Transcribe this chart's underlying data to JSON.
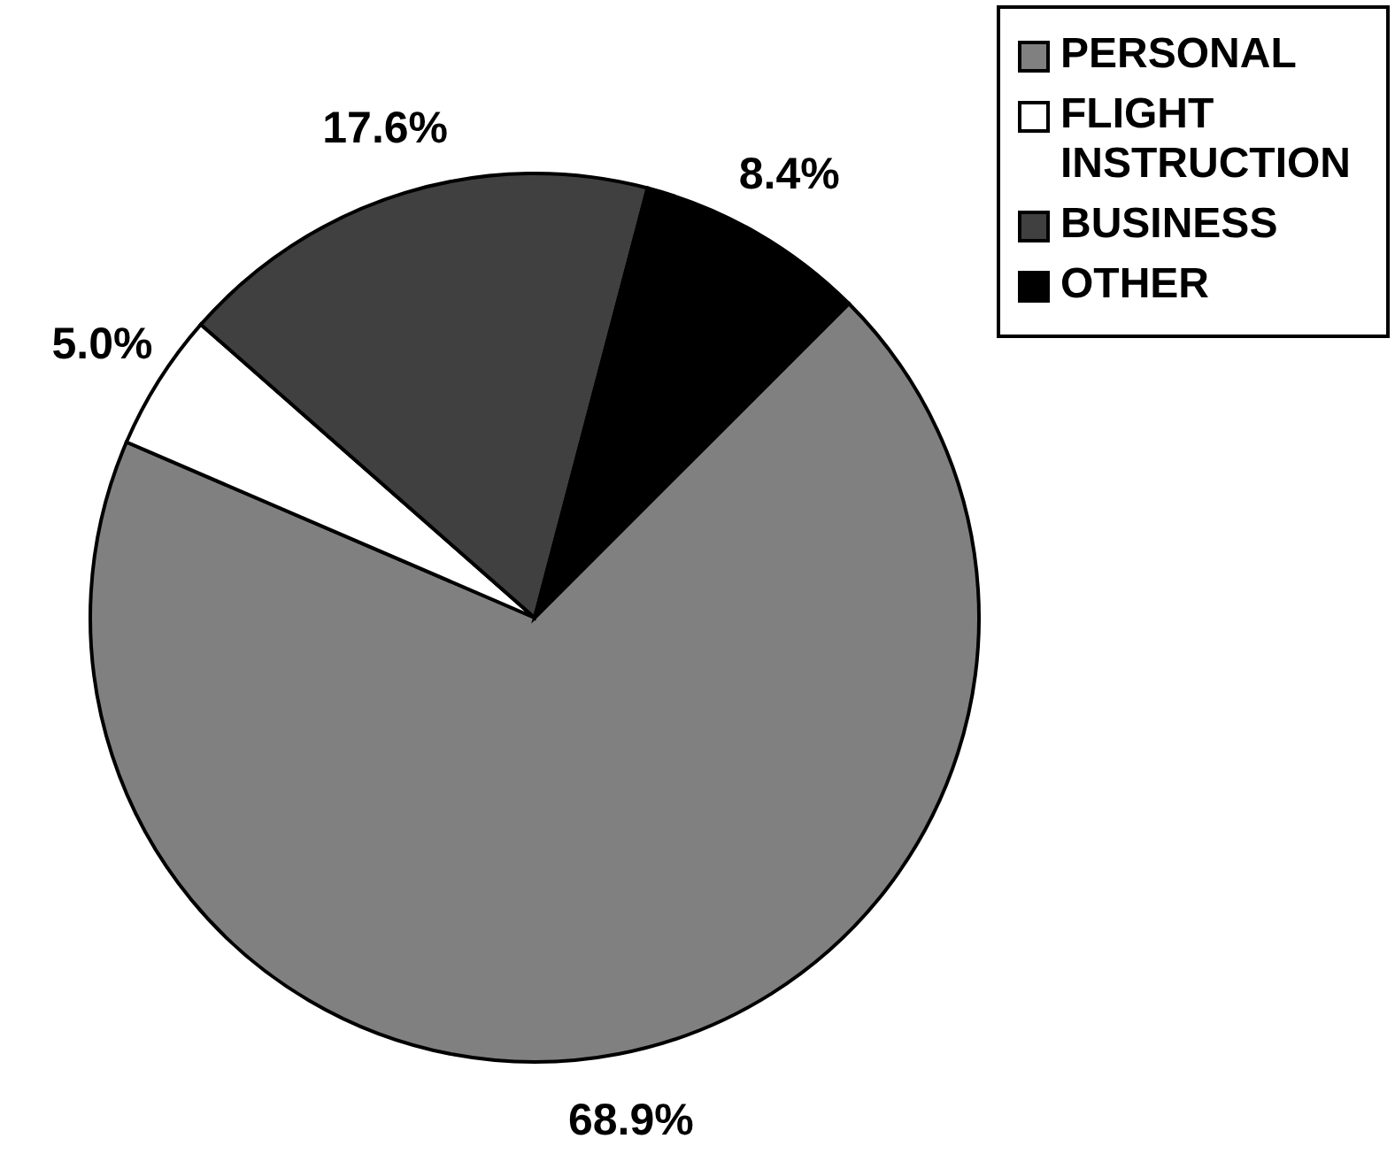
{
  "chart_data": {
    "type": "pie",
    "categories": [
      "PERSONAL",
      "FLIGHT INSTRUCTION",
      "BUSINESS",
      "OTHER"
    ],
    "values": [
      68.9,
      5.0,
      17.6,
      8.4
    ],
    "colors": [
      "#808080",
      "#ffffff",
      "#404040",
      "#000000"
    ],
    "value_labels": [
      "68.9%",
      "5.0%",
      "17.6%",
      "8.4%"
    ],
    "legend": "top right"
  }
}
